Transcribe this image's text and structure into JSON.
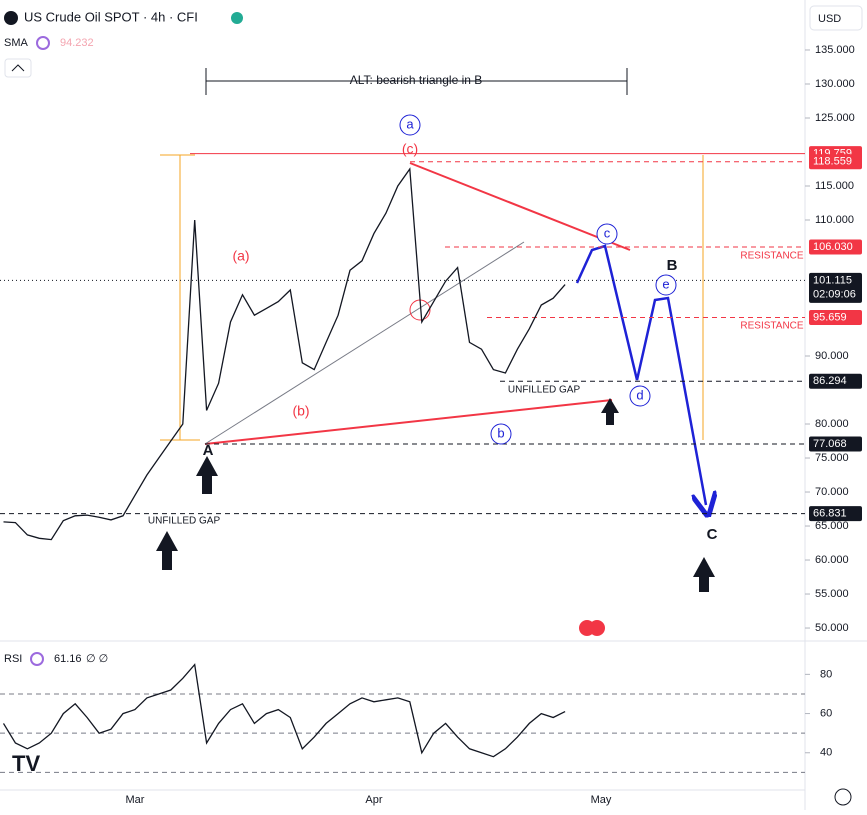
{
  "header": {
    "title": "US Crude Oil SPOT · 4h · CFI",
    "sma_label": "SMA",
    "sma_value": 94.232,
    "currency": "USD",
    "rsi_label": "RSI",
    "rsi_value": 61.16
  },
  "chart_data": [
    {
      "type": "line",
      "color": "#131722",
      "categories": [
        null,
        null,
        null,
        null,
        null,
        null,
        null,
        null,
        null,
        null,
        null,
        "Mar",
        null,
        null,
        null,
        null,
        null,
        null,
        null,
        null,
        null,
        null,
        null,
        null,
        null,
        null,
        null,
        null,
        null,
        null,
        null,
        "Apr",
        null,
        null,
        null,
        null,
        null,
        null,
        null,
        null,
        null,
        null,
        null,
        null,
        null,
        null,
        null,
        null,
        null,
        null,
        "May",
        null,
        null,
        null,
        null,
        null,
        null,
        null,
        null,
        null,
        null,
        null,
        null,
        null,
        null,
        null,
        null,
        null
      ],
      "values": [
        65.6,
        65.5,
        63.7,
        63.2,
        63,
        65.8,
        66.5,
        66.6,
        66.3,
        65.9,
        66.5,
        69.5,
        72.5,
        75,
        77.5,
        80,
        110,
        82,
        86,
        95,
        99,
        96,
        97,
        98,
        99.7,
        89,
        88,
        92,
        96,
        102.6,
        104,
        108,
        111,
        115,
        117.5,
        95,
        98,
        101,
        103,
        92,
        91,
        88,
        87.5,
        91,
        94,
        97.5,
        98.5,
        100.5,
        null,
        null,
        null,
        null,
        null,
        null,
        null,
        null,
        null,
        null,
        null,
        null,
        null,
        null,
        null,
        null,
        null,
        null,
        null,
        null
      ],
      "ylim": [
        48.24,
        142.35
      ],
      "yticks": [
        {
          "value": 135,
          "label": "135.000"
        },
        {
          "value": 130,
          "label": "130.000"
        },
        {
          "value": 125,
          "label": "125.000"
        },
        {
          "value": 115,
          "label": "115.000"
        },
        {
          "value": 110,
          "label": "110.000"
        },
        {
          "value": 90,
          "label": "90.000"
        },
        {
          "value": 80,
          "label": "80.000"
        },
        {
          "value": 75,
          "label": "75.000"
        },
        {
          "value": 70,
          "label": "70.000"
        },
        {
          "value": 65,
          "label": "65.000"
        },
        {
          "value": 60,
          "label": "60.000"
        },
        {
          "value": 55,
          "label": "55.000"
        },
        {
          "value": 50,
          "label": "50.000"
        }
      ],
      "levels": [
        {
          "value": 119.759,
          "label": "119.759",
          "color": "#f23645"
        },
        {
          "value": 118.559,
          "label": "118.559",
          "color": "#f23645"
        },
        {
          "value": 106.03,
          "label": "106.030",
          "color": "#f23645"
        },
        {
          "value": 101.115,
          "label": "101.115",
          "color": "#131722"
        },
        {
          "value": 95.659,
          "label": "95.659",
          "color": "#f23645"
        },
        {
          "value": 86.294,
          "label": "86.294",
          "color": "#131722"
        },
        {
          "value": 77.068,
          "label": "77.068",
          "color": "#131722"
        },
        {
          "value": 66.831,
          "label": "66.831",
          "color": "#131722"
        }
      ],
      "countdown": "02:09:06",
      "annotations": [
        "ALT: bearish triangle in B",
        "(a)",
        "(b)",
        "(c)",
        "a",
        "b",
        "c",
        "d",
        "e",
        "A",
        "B",
        "C",
        "RESISTANCE",
        "RESISTANCE",
        "UNFILLED GAP",
        "UNFILLED GAP"
      ]
    },
    {
      "type": "line",
      "color": "#131722",
      "values": [
        55,
        45,
        42,
        45,
        50,
        60,
        65,
        58,
        50,
        52,
        60,
        62,
        68,
        70,
        72,
        78,
        85,
        45,
        55,
        62,
        65,
        55,
        60,
        62,
        58,
        42,
        48,
        55,
        60,
        65,
        68,
        66,
        67,
        68,
        66,
        40,
        50,
        55,
        48,
        42,
        40,
        38,
        42,
        48,
        55,
        60,
        58,
        61
      ],
      "ylim": [
        21,
        96
      ],
      "yticks": [
        40,
        60,
        80
      ],
      "bands": [
        30,
        50,
        70
      ]
    }
  ]
}
